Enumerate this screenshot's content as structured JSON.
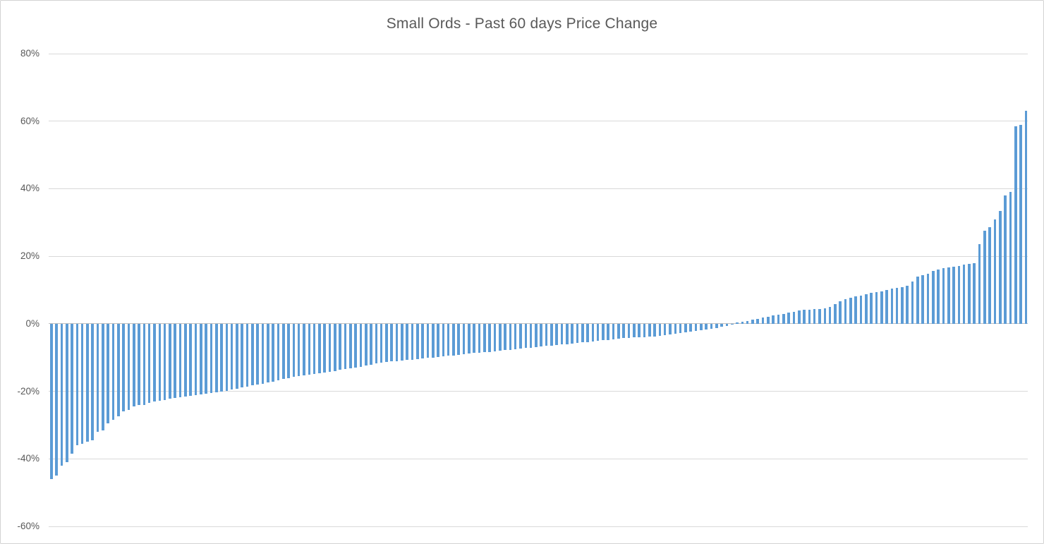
{
  "chart_data": {
    "type": "bar",
    "title": "Small Ords - Past 60 days Price Change",
    "xlabel": "",
    "ylabel": "",
    "unit": "%",
    "ylim": [
      -60,
      80
    ],
    "y_ticks": [
      80,
      60,
      40,
      20,
      0,
      -20,
      -40,
      -60
    ],
    "y_tick_labels": [
      "80%",
      "60%",
      "40%",
      "20%",
      "0%",
      "-20%",
      "-40%",
      "-60%"
    ],
    "x_axis_labels": "none",
    "legend": "none",
    "grid": "horizontal",
    "sorted": "ascending",
    "bar_count": 190,
    "colors": {
      "bar": "#5b9bd5",
      "gridline": "#d9d9d9",
      "zero_axis": "#bfbfbf",
      "text": "#595959",
      "background": "#ffffff",
      "border": "#d2d2d2"
    },
    "values_pct": [
      -46,
      -45,
      -42,
      -41,
      -38.5,
      -36,
      -35.5,
      -35,
      -34.5,
      -32,
      -31.5,
      -29.5,
      -28.5,
      -27.5,
      -26,
      -25.5,
      -24.5,
      -24,
      -24,
      -23.5,
      -23,
      -22.8,
      -22.5,
      -22.2,
      -22,
      -21.8,
      -21.6,
      -21.4,
      -21.2,
      -21,
      -20.8,
      -20.6,
      -20.4,
      -20.1,
      -19.8,
      -19.5,
      -19.2,
      -18.9,
      -18.6,
      -18.3,
      -18,
      -17.7,
      -17.4,
      -17.1,
      -16.8,
      -16.4,
      -16.1,
      -15.8,
      -15.5,
      -15.3,
      -15.1,
      -14.9,
      -14.7,
      -14.4,
      -14.2,
      -14,
      -13.7,
      -13.5,
      -13.2,
      -13,
      -12.7,
      -12.4,
      -12.1,
      -11.8,
      -11.6,
      -11.4,
      -11.2,
      -11.1,
      -10.9,
      -10.7,
      -10.6,
      -10.4,
      -10.3,
      -10.1,
      -10,
      -9.8,
      -9.7,
      -9.5,
      -9.4,
      -9.2,
      -9.1,
      -8.9,
      -8.7,
      -8.6,
      -8.4,
      -8.3,
      -8.1,
      -8,
      -7.8,
      -7.7,
      -7.5,
      -7.4,
      -7.2,
      -7.1,
      -6.9,
      -6.8,
      -6.6,
      -6.5,
      -6.3,
      -6.1,
      -6,
      -5.8,
      -5.7,
      -5.5,
      -5.4,
      -5.2,
      -5.1,
      -4.9,
      -4.8,
      -4.6,
      -4.5,
      -4.3,
      -4.2,
      -4.1,
      -4,
      -3.9,
      -3.8,
      -3.7,
      -3.6,
      -3.4,
      -3.2,
      -3,
      -2.8,
      -2.6,
      -2.4,
      -2.2,
      -2,
      -1.7,
      -1.5,
      -1.2,
      -0.9,
      -0.6,
      -0.3,
      0.3,
      0.6,
      0.9,
      1.2,
      1.5,
      1.8,
      2.1,
      2.4,
      2.7,
      3,
      3.3,
      3.6,
      3.9,
      4.1,
      4.2,
      4.3,
      4.4,
      4.6,
      5,
      5.9,
      6.6,
      7.3,
      7.8,
      8.2,
      8.4,
      8.7,
      9.2,
      9.4,
      9.6,
      10,
      10.4,
      10.6,
      10.8,
      11.3,
      12.5,
      14,
      14.4,
      14.9,
      15.7,
      16,
      16.4,
      16.6,
      17,
      17.2,
      17.6,
      17.8,
      18,
      23.5,
      27.5,
      28.5,
      31,
      33.5,
      38,
      39,
      58.5,
      59,
      63
    ]
  }
}
